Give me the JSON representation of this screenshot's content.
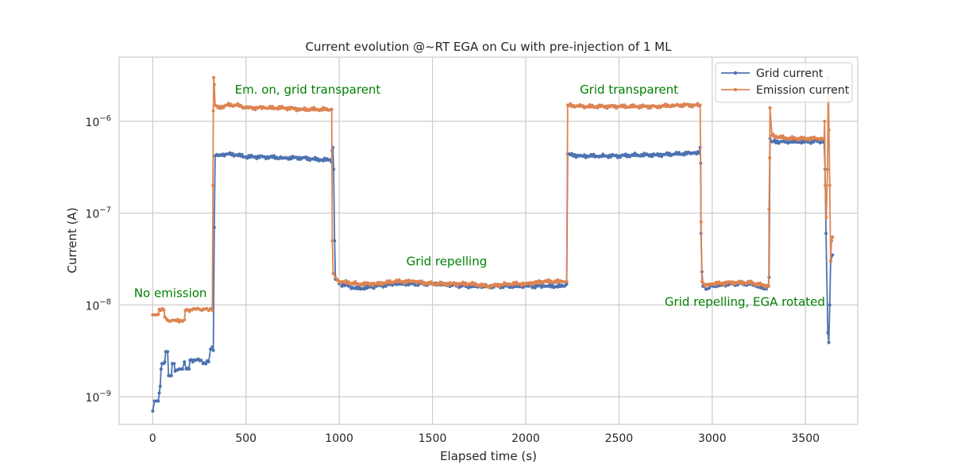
{
  "chart_data": {
    "type": "line",
    "title": "Current evolution @~RT EGA on Cu  with pre-injection of 1 ML",
    "xlabel": "Elapsed time (s)",
    "ylabel": "Current (A)",
    "xlim": [
      -180,
      3780
    ],
    "ylim": [
      5e-10,
      5e-06
    ],
    "yscale": "log",
    "grid": true,
    "legend_position": "top-right",
    "x_ticks": [
      {
        "value": 0,
        "label": "0"
      },
      {
        "value": 500,
        "label": "500"
      },
      {
        "value": 1000,
        "label": "1000"
      },
      {
        "value": 1500,
        "label": "1500"
      },
      {
        "value": 2000,
        "label": "2000"
      },
      {
        "value": 2500,
        "label": "2500"
      },
      {
        "value": 3000,
        "label": "3000"
      },
      {
        "value": 3500,
        "label": "3500"
      }
    ],
    "y_ticks": [
      {
        "value": 1e-09,
        "base": "10",
        "exp": "−9"
      },
      {
        "value": 1e-08,
        "base": "10",
        "exp": "−8"
      },
      {
        "value": 1e-07,
        "base": "10",
        "exp": "−7"
      },
      {
        "value": 1e-06,
        "base": "10",
        "exp": "−6"
      }
    ],
    "series": [
      {
        "name": "Grid current",
        "color": "#4c72b0",
        "points": [
          [
            0,
            7e-10
          ],
          [
            10,
            9e-10
          ],
          [
            20,
            9e-10
          ],
          [
            30,
            9e-10
          ],
          [
            35,
            1.1e-09
          ],
          [
            40,
            1.3e-09
          ],
          [
            45,
            2e-09
          ],
          [
            50,
            2.3e-09
          ],
          [
            60,
            2.3e-09
          ],
          [
            65,
            2.4e-09
          ],
          [
            70,
            3.1e-09
          ],
          [
            80,
            3.1e-09
          ],
          [
            85,
            1.7e-09
          ],
          [
            100,
            1.7e-09
          ],
          [
            105,
            2.3e-09
          ],
          [
            115,
            2.3e-09
          ],
          [
            120,
            1.9e-09
          ],
          [
            150,
            2e-09
          ],
          [
            160,
            2e-09
          ],
          [
            170,
            2.4e-09
          ],
          [
            180,
            2e-09
          ],
          [
            195,
            2e-09
          ],
          [
            200,
            2.5e-09
          ],
          [
            260,
            2.5e-09
          ],
          [
            270,
            2.3e-09
          ],
          [
            300,
            2.4e-09
          ],
          [
            310,
            3.3e-09
          ],
          [
            320,
            3.5e-09
          ],
          [
            325,
            3.2e-09
          ],
          [
            330,
            7e-08
          ],
          [
            335,
            4.2e-07
          ],
          [
            360,
            4.3e-07
          ],
          [
            400,
            4.4e-07
          ],
          [
            450,
            4.3e-07
          ],
          [
            500,
            4.1e-07
          ],
          [
            600,
            4.1e-07
          ],
          [
            700,
            4e-07
          ],
          [
            800,
            4e-07
          ],
          [
            900,
            3.8e-07
          ],
          [
            950,
            3.8e-07
          ],
          [
            958,
            3.6e-07
          ],
          [
            962,
            4.8e-07
          ],
          [
            966,
            5.2e-07
          ],
          [
            970,
            3e-07
          ],
          [
            975,
            5e-08
          ],
          [
            980,
            1.9e-08
          ],
          [
            1000,
            1.7e-08
          ],
          [
            1050,
            1.6e-08
          ],
          [
            1100,
            1.5e-08
          ],
          [
            1200,
            1.6e-08
          ],
          [
            1300,
            1.7e-08
          ],
          [
            1400,
            1.7e-08
          ],
          [
            1500,
            1.7e-08
          ],
          [
            1700,
            1.6e-08
          ],
          [
            1800,
            1.6e-08
          ],
          [
            2000,
            1.6e-08
          ],
          [
            2100,
            1.6e-08
          ],
          [
            2200,
            1.6e-08
          ],
          [
            2215,
            1.65e-08
          ],
          [
            2220,
            1.7e-08
          ],
          [
            2225,
            4.4e-07
          ],
          [
            2240,
            4.3e-07
          ],
          [
            2300,
            4.2e-07
          ],
          [
            2400,
            4.2e-07
          ],
          [
            2500,
            4.2e-07
          ],
          [
            2600,
            4.3e-07
          ],
          [
            2700,
            4.3e-07
          ],
          [
            2800,
            4.4e-07
          ],
          [
            2900,
            4.5e-07
          ],
          [
            2930,
            4.5e-07
          ],
          [
            2935,
            5.2e-07
          ],
          [
            2938,
            3.5e-07
          ],
          [
            2940,
            6e-08
          ],
          [
            2945,
            2.3e-08
          ],
          [
            2950,
            1.6e-08
          ],
          [
            2975,
            1.5e-08
          ],
          [
            3000,
            1.6e-08
          ],
          [
            3100,
            1.7e-08
          ],
          [
            3200,
            1.7e-08
          ],
          [
            3250,
            1.6e-08
          ],
          [
            3280,
            1.5e-08
          ],
          [
            3300,
            1.6e-08
          ],
          [
            3305,
            2e-08
          ],
          [
            3310,
            6.5e-07
          ],
          [
            3320,
            6e-07
          ],
          [
            3400,
            6e-07
          ],
          [
            3500,
            6e-07
          ],
          [
            3600,
            6.1e-07
          ],
          [
            3605,
            3e-07
          ],
          [
            3610,
            6e-08
          ],
          [
            3620,
            5e-09
          ],
          [
            3625,
            3.9e-09
          ],
          [
            3630,
            1e-08
          ],
          [
            3635,
            3e-08
          ],
          [
            3645,
            3.5e-08
          ]
        ]
      },
      {
        "name": "Emission current",
        "color": "#dd8452",
        "points": [
          [
            0,
            7.8e-09
          ],
          [
            20,
            7.8e-09
          ],
          [
            30,
            7.9e-09
          ],
          [
            35,
            9e-09
          ],
          [
            60,
            8.8e-09
          ],
          [
            65,
            7.4e-09
          ],
          [
            75,
            7e-09
          ],
          [
            80,
            6.8e-09
          ],
          [
            120,
            6.8e-09
          ],
          [
            150,
            6.8e-09
          ],
          [
            170,
            6.9e-09
          ],
          [
            175,
            8.7e-09
          ],
          [
            210,
            8.8e-09
          ],
          [
            230,
            9e-09
          ],
          [
            250,
            9e-09
          ],
          [
            280,
            9e-09
          ],
          [
            300,
            8.7e-09
          ],
          [
            310,
            9.1e-09
          ],
          [
            320,
            8.7e-09
          ],
          [
            323,
            2e-07
          ],
          [
            325,
            1.3e-06
          ],
          [
            327,
            3e-06
          ],
          [
            330,
            2.5e-06
          ],
          [
            335,
            1.5e-06
          ],
          [
            350,
            1.4e-06
          ],
          [
            400,
            1.5e-06
          ],
          [
            450,
            1.5e-06
          ],
          [
            500,
            1.4e-06
          ],
          [
            600,
            1.4e-06
          ],
          [
            700,
            1.4e-06
          ],
          [
            800,
            1.35e-06
          ],
          [
            900,
            1.35e-06
          ],
          [
            960,
            1.35e-06
          ],
          [
            963,
            5e-08
          ],
          [
            968,
            2.2e-08
          ],
          [
            980,
            2e-08
          ],
          [
            1000,
            1.8e-08
          ],
          [
            1100,
            1.7e-08
          ],
          [
            1200,
            1.7e-08
          ],
          [
            1300,
            1.8e-08
          ],
          [
            1400,
            1.8e-08
          ],
          [
            1500,
            1.7e-08
          ],
          [
            1600,
            1.7e-08
          ],
          [
            1700,
            1.7e-08
          ],
          [
            1800,
            1.6e-08
          ],
          [
            1900,
            1.7e-08
          ],
          [
            2000,
            1.7e-08
          ],
          [
            2100,
            1.8e-08
          ],
          [
            2200,
            1.8e-08
          ],
          [
            2220,
            1.8e-08
          ],
          [
            2225,
            1.5e-06
          ],
          [
            2300,
            1.45e-06
          ],
          [
            2400,
            1.45e-06
          ],
          [
            2500,
            1.45e-06
          ],
          [
            2600,
            1.45e-06
          ],
          [
            2700,
            1.45e-06
          ],
          [
            2800,
            1.5e-06
          ],
          [
            2900,
            1.5e-06
          ],
          [
            2935,
            1.5e-06
          ],
          [
            2940,
            8e-08
          ],
          [
            2945,
            1.8e-08
          ],
          [
            2960,
            1.6e-08
          ],
          [
            3000,
            1.7e-08
          ],
          [
            3100,
            1.75e-08
          ],
          [
            3200,
            1.75e-08
          ],
          [
            3300,
            1.6e-08
          ],
          [
            3303,
            1.6e-08
          ],
          [
            3305,
            1.1e-07
          ],
          [
            3308,
            4e-07
          ],
          [
            3310,
            1.4e-06
          ],
          [
            3320,
            7e-07
          ],
          [
            3400,
            6.5e-07
          ],
          [
            3500,
            6.5e-07
          ],
          [
            3560,
            6.5e-07
          ],
          [
            3600,
            6.5e-07
          ],
          [
            3603,
            1e-06
          ],
          [
            3606,
            2e-07
          ],
          [
            3612,
            9e-08
          ],
          [
            3618,
            3e-07
          ],
          [
            3622,
            3e-06
          ],
          [
            3626,
            8e-07
          ],
          [
            3630,
            2e-07
          ],
          [
            3635,
            3e-08
          ],
          [
            3640,
            5e-08
          ],
          [
            3645,
            5.5e-08
          ]
        ]
      }
    ],
    "annotations": [
      {
        "text": "No emission",
        "x": -100,
        "y": 1.22e-08,
        "anchor": "start",
        "color": "#008000"
      },
      {
        "text": "Em. on, grid transparent",
        "x": 440,
        "y": 2e-06,
        "anchor": "start",
        "color": "#008000"
      },
      {
        "text": "Grid repelling",
        "x": 1360,
        "y": 2.7e-08,
        "anchor": "start",
        "color": "#008000"
      },
      {
        "text": "Grid transparent",
        "x": 2290,
        "y": 2e-06,
        "anchor": "start",
        "color": "#008000"
      },
      {
        "text": "Grid repelling, EGA rotated",
        "x": 2745,
        "y": 9.8e-09,
        "anchor": "start",
        "color": "#008000"
      }
    ]
  }
}
